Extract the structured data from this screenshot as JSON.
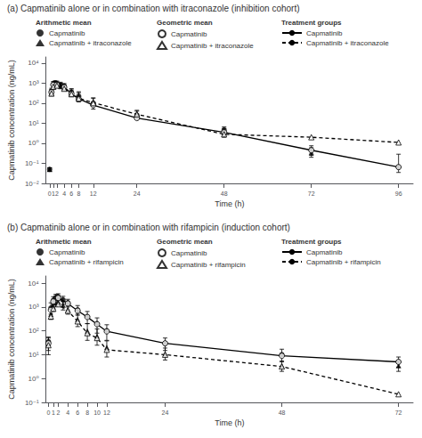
{
  "chart_data": [
    {
      "type": "scatter",
      "title": "(a) Capmatinib alone or in combination with itraconazole (inhibition cohort)",
      "x_label": "Time (h)",
      "y_label": "Capmatinib concentration (ng/mL)",
      "log": "y",
      "grid": false,
      "legend": "top",
      "xlim": [
        -1,
        100
      ],
      "xticks": [
        0,
        1,
        2,
        4,
        6,
        8,
        12,
        24,
        48,
        72,
        96
      ],
      "ylim": [
        0.01,
        20000
      ],
      "yticks": [
        {
          "value": 0.01,
          "label": "10⁻²"
        },
        {
          "value": 0.1,
          "label": "10⁻¹"
        },
        {
          "value": 1,
          "label": "10⁰"
        },
        {
          "value": 10,
          "label": "10¹"
        },
        {
          "value": 100,
          "label": "10²"
        },
        {
          "value": 1000,
          "label": "10³"
        },
        {
          "value": 10000,
          "label": "10⁴"
        }
      ],
      "series": [
        {
          "name": "Capmatinib",
          "legend_title": "Arithmetic mean",
          "type": "scatter",
          "marker": "filled circle",
          "color": "#000000",
          "x": [
            0,
            0.5,
            1,
            1.5,
            2,
            3,
            4,
            6,
            8,
            12,
            24,
            48,
            72,
            96
          ],
          "values": [
            0.05,
            400,
            900,
            1000,
            900,
            800,
            700,
            350,
            220,
            100,
            25,
            4.5,
            0.45,
            0.065
          ],
          "error_low": [
            0.01,
            150,
            200,
            200,
            200,
            200,
            180,
            120,
            100,
            50,
            10,
            2,
            0.2,
            0.03
          ],
          "error_high": [
            0.01,
            150,
            300,
            300,
            350,
            300,
            250,
            180,
            150,
            80,
            15,
            2,
            0.3,
            0.22
          ]
        },
        {
          "name": "Capmatinib + itraconazole",
          "legend_title": "Arithmetic mean",
          "type": "scatter",
          "marker": "filled triangle",
          "color": "#000000",
          "x": [
            0,
            0.5,
            1,
            1.5,
            2,
            3,
            4,
            6,
            8,
            12,
            24,
            48,
            72
          ],
          "values": [
            0.05,
            350,
            700,
            900,
            850,
            700,
            600,
            310,
            200,
            110,
            30,
            3.5,
            0.35
          ],
          "error_low": [
            0.01,
            120,
            180,
            200,
            200,
            180,
            160,
            100,
            80,
            40,
            12,
            1.5,
            0.15
          ],
          "error_high": [
            0.01,
            120,
            250,
            280,
            300,
            280,
            220,
            150,
            130,
            70,
            14,
            2,
            0.25
          ]
        },
        {
          "name": "Capmatinib",
          "legend_title": "Geometric mean",
          "type": "scatter",
          "marker": "open circle",
          "color": "#000000",
          "x": [
            0.5,
            1,
            2,
            4,
            6,
            8,
            12,
            24,
            48,
            72,
            96
          ],
          "values": [
            350,
            820,
            820,
            620,
            290,
            160,
            80,
            18,
            3.5,
            0.45,
            0.065
          ]
        },
        {
          "name": "Capmatinib + itraconazole",
          "legend_title": "Geometric mean",
          "type": "scatter",
          "marker": "open triangle",
          "color": "#000000",
          "x": [
            0.5,
            1,
            2,
            4,
            6,
            8,
            12,
            24,
            48,
            72,
            96
          ],
          "values": [
            300,
            650,
            750,
            520,
            280,
            170,
            100,
            28,
            2.8,
            2.0,
            1.1
          ]
        },
        {
          "name": "Capmatinib",
          "legend_title": "Treatment groups",
          "type": "line",
          "line_style": "solid",
          "color": "#000000",
          "x": [
            0.5,
            1,
            2,
            4,
            6,
            8,
            12,
            24,
            48,
            72,
            96
          ],
          "values": [
            400,
            900,
            850,
            650,
            290,
            165,
            80,
            18,
            3.5,
            0.45,
            0.065
          ]
        },
        {
          "name": "Capmatinib + itraconazole",
          "legend_title": "Treatment groups",
          "type": "line",
          "line_style": "dashed",
          "color": "#000000",
          "x": [
            0.5,
            1,
            2,
            4,
            6,
            8,
            12,
            24,
            48,
            72,
            96
          ],
          "values": [
            350,
            700,
            780,
            530,
            290,
            175,
            105,
            28,
            2.8,
            2.0,
            1.1
          ]
        }
      ]
    },
    {
      "type": "scatter",
      "title": "(b) Capmatinib alone or in combination with rifampicin (induction cohort)",
      "x_label": "Time (h)",
      "y_label": "Capmatinib concentration (ng/mL)",
      "log": "y",
      "grid": false,
      "legend": "top",
      "xlim": [
        -0.5,
        75
      ],
      "xticks": [
        0,
        1,
        2,
        4,
        6,
        8,
        10,
        12,
        24,
        48,
        72
      ],
      "ylim": [
        0.1,
        20000
      ],
      "yticks": [
        {
          "value": 0.1,
          "label": "10⁻¹"
        },
        {
          "value": 1,
          "label": "10⁰"
        },
        {
          "value": 10,
          "label": "10¹"
        },
        {
          "value": 100,
          "label": "10²"
        },
        {
          "value": 1000,
          "label": "10³"
        },
        {
          "value": 10000,
          "label": "10⁴"
        }
      ],
      "series": [
        {
          "name": "Capmatinib",
          "legend_title": "Arithmetic mean",
          "type": "scatter",
          "marker": "filled circle",
          "color": "#000000",
          "x": [
            0,
            0.5,
            1,
            1.5,
            2,
            3,
            4,
            6,
            8,
            10,
            12,
            24,
            48,
            72
          ],
          "values": [
            35,
            900,
            1900,
            2500,
            2700,
            2000,
            1500,
            750,
            400,
            200,
            100,
            30,
            10,
            5
          ],
          "error_low": [
            20,
            400,
            600,
            700,
            800,
            700,
            500,
            300,
            200,
            120,
            60,
            15,
            5,
            2
          ],
          "error_high": [
            20,
            600,
            800,
            900,
            900,
            800,
            600,
            400,
            250,
            150,
            80,
            20,
            7,
            3
          ]
        },
        {
          "name": "Capmatinib + rifampicin",
          "legend_title": "Arithmetic mean",
          "type": "scatter",
          "marker": "filled triangle",
          "color": "#000000",
          "x": [
            0,
            0.5,
            1,
            1.5,
            2,
            3,
            4,
            6,
            8,
            10,
            12,
            24,
            48,
            72
          ],
          "values": [
            30,
            500,
            1000,
            1500,
            1700,
            1200,
            800,
            300,
            100,
            60,
            20,
            11,
            3.5,
            3.5
          ],
          "error_low": [
            20,
            200,
            350,
            450,
            550,
            450,
            300,
            150,
            60,
            35,
            12,
            5,
            1.5,
            1.5
          ],
          "error_high": [
            20,
            300,
            450,
            550,
            650,
            500,
            350,
            200,
            100,
            60,
            18,
            8,
            2,
            2
          ]
        },
        {
          "name": "Capmatinib",
          "legend_title": "Geometric mean",
          "type": "scatter",
          "marker": "open circle",
          "color": "#000000",
          "x": [
            0,
            0.5,
            1,
            2,
            4,
            6,
            8,
            10,
            12,
            24,
            48,
            72
          ],
          "values": [
            30,
            750,
            1700,
            2400,
            1400,
            700,
            380,
            190,
            95,
            30,
            9,
            5
          ]
        },
        {
          "name": "Capmatinib + rifampicin",
          "legend_title": "Geometric mean",
          "type": "scatter",
          "marker": "open triangle",
          "color": "#000000",
          "x": [
            0,
            0.5,
            1,
            2,
            4,
            6,
            8,
            10,
            12,
            24,
            48,
            72
          ],
          "values": [
            25,
            400,
            850,
            1300,
            700,
            250,
            80,
            50,
            16,
            10,
            3.2,
            0.22
          ]
        },
        {
          "name": "Capmatinib",
          "legend_title": "Treatment groups",
          "type": "line",
          "line_style": "solid",
          "color": "#000000",
          "x": [
            0.5,
            1,
            2,
            4,
            6,
            8,
            10,
            12,
            24,
            48,
            72
          ],
          "values": [
            750,
            1700,
            2400,
            1400,
            700,
            380,
            190,
            95,
            30,
            9,
            5
          ]
        },
        {
          "name": "Capmatinib + rifampicin",
          "legend_title": "Treatment groups",
          "type": "line",
          "line_style": "dashed",
          "color": "#000000",
          "x": [
            0.5,
            1,
            2,
            4,
            6,
            8,
            10,
            12,
            24,
            48,
            72
          ],
          "values": [
            400,
            850,
            1300,
            700,
            250,
            80,
            50,
            16,
            10,
            3.2,
            0.22
          ]
        }
      ]
    }
  ]
}
